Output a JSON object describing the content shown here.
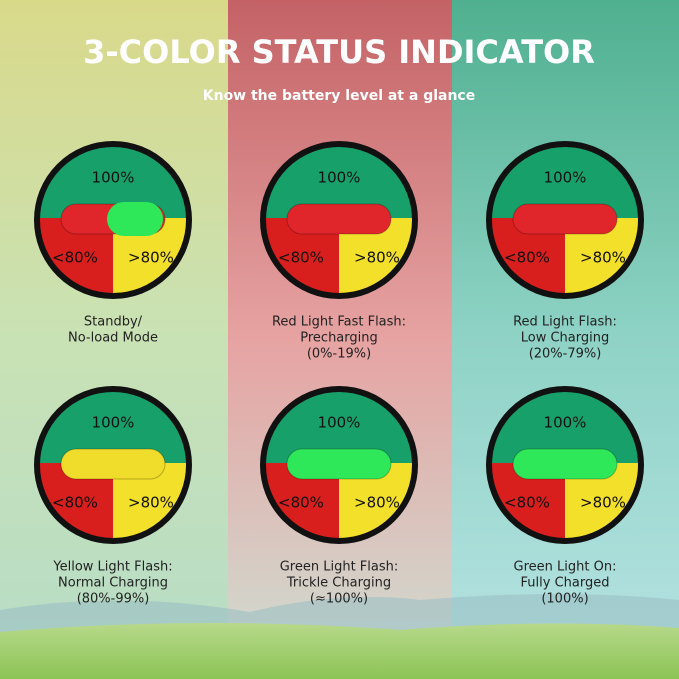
{
  "header": {
    "title": "3-COLOR STATUS INDICATOR",
    "subtitle": "Know the battery level at a glance"
  },
  "indicators": [
    {
      "top": "100%",
      "left": "<80%",
      "right": ">80%",
      "light": "#e0262b",
      "knob": "#2ee85a",
      "caption": [
        "Standby/",
        "No-load Mode"
      ]
    },
    {
      "top": "100%",
      "left": "<80%",
      "right": ">80%",
      "light": "#e0262b",
      "caption": [
        "Red Light Fast Flash:",
        "Precharging",
        "(0%-19%)"
      ]
    },
    {
      "top": "100%",
      "left": "<80%",
      "right": ">80%",
      "light": "#e0262b",
      "caption": [
        "Red Light Flash:",
        "Low Charging",
        "(20%-79%)"
      ]
    },
    {
      "top": "100%",
      "left": "<80%",
      "right": ">80%",
      "light": "#f0dc2a",
      "caption": [
        "Yellow Light Flash:",
        "Normal Charging",
        "(80%-99%)"
      ]
    },
    {
      "top": "100%",
      "left": "<80%",
      "right": ">80%",
      "light": "#2ee85a",
      "caption": [
        "Green Light Flash:",
        "Trickle Charging",
        "(≈100%)"
      ]
    },
    {
      "top": "100%",
      "left": "<80%",
      "right": ">80%",
      "light": "#2ee85a",
      "caption": [
        "Green Light On:",
        "Fully Charged",
        "(100%)"
      ]
    }
  ]
}
